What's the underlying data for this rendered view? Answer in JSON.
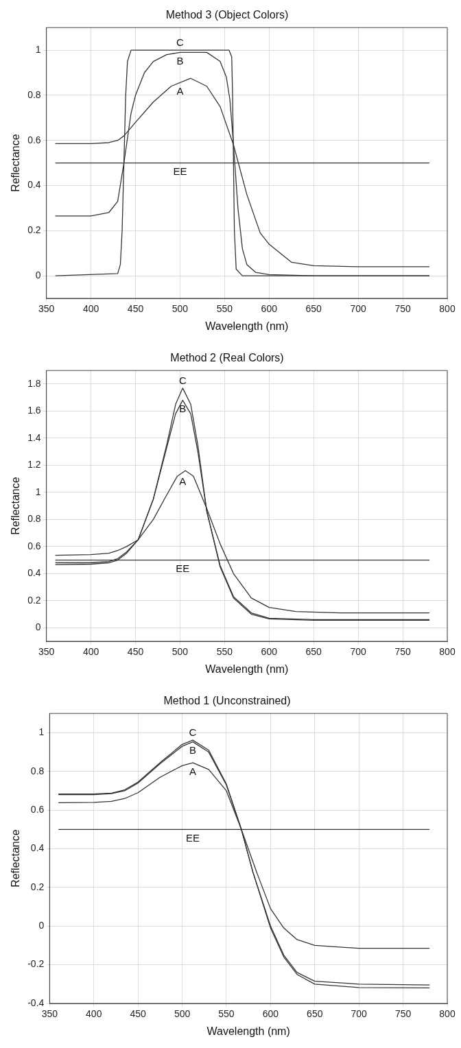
{
  "chart_data": [
    {
      "type": "line",
      "title": "Method 3 (Object Colors)",
      "xlabel": "Wavelength (nm)",
      "ylabel": "Reflectance",
      "xlim": [
        350,
        800
      ],
      "xticks": [
        350,
        400,
        450,
        500,
        550,
        600,
        650,
        700,
        750,
        800
      ],
      "ylim": [
        -0.1,
        1.1
      ],
      "yticks": [
        0,
        0.2,
        0.4,
        0.6,
        0.8,
        1
      ],
      "grid": true,
      "legend": false,
      "marker": "none",
      "line_style": "solid",
      "series": [
        {
          "name": "A",
          "color": "#333333",
          "x": [
            360,
            400,
            420,
            430,
            437,
            450,
            470,
            490,
            512,
            530,
            545,
            560,
            575,
            590,
            600,
            625,
            650,
            700,
            780
          ],
          "values": [
            0.586,
            0.586,
            0.59,
            0.6,
            0.62,
            0.68,
            0.77,
            0.84,
            0.875,
            0.84,
            0.75,
            0.58,
            0.36,
            0.19,
            0.14,
            0.06,
            0.045,
            0.04,
            0.04
          ]
        },
        {
          "name": "B",
          "color": "#333333",
          "x": [
            360,
            400,
            420,
            430,
            437,
            445,
            450,
            460,
            470,
            485,
            500,
            530,
            545,
            552,
            556,
            560,
            565,
            570,
            575,
            585,
            600,
            650,
            780
          ],
          "values": [
            0.265,
            0.265,
            0.28,
            0.33,
            0.5,
            0.72,
            0.8,
            0.9,
            0.95,
            0.98,
            0.99,
            0.99,
            0.95,
            0.88,
            0.78,
            0.58,
            0.3,
            0.12,
            0.05,
            0.015,
            0.005,
            0,
            0
          ]
        },
        {
          "name": "C",
          "color": "#333333",
          "x": [
            360,
            430,
            433,
            435,
            437,
            439,
            441,
            445,
            500,
            555,
            558,
            559,
            560,
            561,
            563,
            570,
            780
          ],
          "values": [
            0,
            0.01,
            0.05,
            0.2,
            0.5,
            0.8,
            0.95,
            1,
            1,
            1,
            0.97,
            0.8,
            0.5,
            0.2,
            0.03,
            0,
            0
          ]
        },
        {
          "name": "EE",
          "color": "#333333",
          "x": [
            360,
            780
          ],
          "values": [
            0.5,
            0.5
          ]
        }
      ]
    },
    {
      "type": "line",
      "title": "Method 2 (Real Colors)",
      "xlabel": "Wavelength (nm)",
      "ylabel": "Reflectance",
      "xlim": [
        350,
        800
      ],
      "xticks": [
        350,
        400,
        450,
        500,
        550,
        600,
        650,
        700,
        750,
        800
      ],
      "ylim": [
        -0.1,
        1.9
      ],
      "yticks": [
        0,
        0.2,
        0.4,
        0.6,
        0.8,
        1,
        1.2,
        1.4,
        1.6,
        1.8
      ],
      "grid": true,
      "legend": false,
      "marker": "none",
      "line_style": "solid",
      "series": [
        {
          "name": "A",
          "color": "#333333",
          "x": [
            360,
            400,
            420,
            430,
            440,
            453,
            470,
            485,
            497,
            506,
            515,
            530,
            545,
            560,
            580,
            600,
            630,
            680,
            780
          ],
          "values": [
            0.535,
            0.54,
            0.55,
            0.57,
            0.6,
            0.65,
            0.8,
            0.98,
            1.12,
            1.16,
            1.12,
            0.88,
            0.62,
            0.4,
            0.22,
            0.15,
            0.12,
            0.11,
            0.11
          ]
        },
        {
          "name": "B",
          "color": "#333333",
          "x": [
            360,
            400,
            420,
            430,
            440,
            453,
            470,
            485,
            495,
            503,
            512,
            520,
            530,
            545,
            560,
            580,
            600,
            650,
            780
          ],
          "values": [
            0.48,
            0.48,
            0.49,
            0.51,
            0.56,
            0.65,
            0.95,
            1.33,
            1.58,
            1.68,
            1.58,
            1.3,
            0.86,
            0.46,
            0.23,
            0.11,
            0.07,
            0.06,
            0.06
          ]
        },
        {
          "name": "C",
          "color": "#333333",
          "x": [
            360,
            400,
            420,
            430,
            440,
            453,
            470,
            485,
            495,
            503,
            512,
            520,
            530,
            545,
            560,
            580,
            600,
            650,
            780
          ],
          "values": [
            0.465,
            0.47,
            0.48,
            0.5,
            0.55,
            0.65,
            0.95,
            1.35,
            1.65,
            1.77,
            1.65,
            1.35,
            0.86,
            0.45,
            0.22,
            0.1,
            0.065,
            0.055,
            0.055
          ]
        },
        {
          "name": "EE",
          "color": "#333333",
          "x": [
            360,
            780
          ],
          "values": [
            0.5,
            0.5
          ]
        }
      ]
    },
    {
      "type": "line",
      "title": "Method 1 (Unconstrained)",
      "xlabel": "Wavelength (nm)",
      "ylabel": "Reflectance",
      "xlim": [
        350,
        800
      ],
      "xticks": [
        350,
        400,
        450,
        500,
        550,
        600,
        650,
        700,
        750,
        800
      ],
      "ylim": [
        -0.4,
        1.1
      ],
      "yticks": [
        -0.4,
        -0.2,
        0,
        0.2,
        0.4,
        0.6,
        0.8,
        1
      ],
      "grid": true,
      "legend": false,
      "marker": "none",
      "line_style": "solid",
      "series": [
        {
          "name": "A",
          "color": "#333333",
          "x": [
            360,
            400,
            420,
            435,
            450,
            475,
            500,
            512,
            530,
            550,
            567,
            585,
            600,
            615,
            630,
            650,
            700,
            780
          ],
          "values": [
            0.638,
            0.64,
            0.645,
            0.66,
            0.69,
            0.77,
            0.83,
            0.845,
            0.81,
            0.7,
            0.5,
            0.27,
            0.09,
            -0.01,
            -0.07,
            -0.1,
            -0.115,
            -0.115
          ]
        },
        {
          "name": "B",
          "color": "#333333",
          "x": [
            360,
            400,
            420,
            435,
            450,
            475,
            500,
            512,
            530,
            550,
            567,
            580,
            600,
            615,
            630,
            650,
            700,
            780
          ],
          "values": [
            0.68,
            0.68,
            0.685,
            0.7,
            0.74,
            0.84,
            0.93,
            0.953,
            0.9,
            0.73,
            0.5,
            0.28,
            0.0,
            -0.15,
            -0.24,
            -0.285,
            -0.3,
            -0.305
          ]
        },
        {
          "name": "C",
          "color": "#333333",
          "x": [
            360,
            400,
            420,
            435,
            450,
            475,
            500,
            512,
            530,
            550,
            567,
            580,
            600,
            615,
            630,
            650,
            700,
            780
          ],
          "values": [
            0.683,
            0.683,
            0.688,
            0.705,
            0.745,
            0.845,
            0.94,
            0.962,
            0.91,
            0.735,
            0.5,
            0.28,
            -0.01,
            -0.16,
            -0.25,
            -0.3,
            -0.318,
            -0.32
          ]
        },
        {
          "name": "EE",
          "color": "#333333",
          "x": [
            360,
            780
          ],
          "values": [
            0.5,
            0.5
          ]
        }
      ]
    }
  ]
}
